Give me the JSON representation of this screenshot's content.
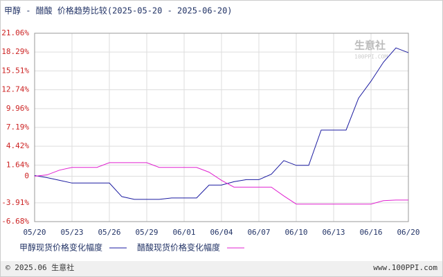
{
  "chart_data": {
    "type": "line",
    "title": "甲醇 - 醋酸 价格趋势比较(2025-05-20 - 2025-06-20)",
    "categories": [
      "05/20",
      null,
      null,
      "05/23",
      null,
      null,
      "05/26",
      null,
      null,
      "05/29",
      null,
      null,
      "06/01",
      null,
      null,
      "06/04",
      null,
      null,
      "06/07",
      null,
      null,
      "06/10",
      null,
      null,
      "06/13",
      null,
      null,
      "06/16",
      null,
      null,
      "06/20"
    ],
    "series": [
      {
        "name": "甲醇现货价格变化幅度",
        "color": "#1a1aa0",
        "values": [
          0.1,
          -0.2,
          -0.6,
          -1.0,
          -1.0,
          -1.0,
          -1.0,
          -3.0,
          -3.4,
          -3.4,
          -3.4,
          -3.2,
          -3.2,
          -3.2,
          -1.3,
          -1.3,
          -0.8,
          -0.5,
          -0.5,
          0.3,
          2.3,
          1.6,
          1.6,
          6.8,
          6.8,
          6.8,
          11.5,
          14.0,
          16.8,
          18.9,
          18.2
        ]
      },
      {
        "name": "醋酸现货价格变化幅度",
        "color": "#e020d0",
        "values": [
          0,
          0.2,
          0.9,
          1.3,
          1.3,
          1.3,
          2.0,
          2.0,
          2.0,
          2.0,
          1.3,
          1.3,
          1.3,
          1.3,
          0.6,
          -0.6,
          -1.6,
          -1.6,
          -1.6,
          -1.6,
          -2.9,
          -4.1,
          -4.1,
          -4.1,
          -4.1,
          -4.1,
          -4.1,
          -4.1,
          -3.6,
          -3.5,
          -3.5
        ]
      }
    ],
    "ylim": [
      -6.68,
      21.06
    ],
    "yticks": [
      {
        "value": -6.68,
        "label": "-6.68%"
      },
      {
        "value": -3.91,
        "label": "-3.91%"
      },
      0,
      {
        "value": 1.64,
        "label": "1.64%"
      },
      {
        "value": 4.42,
        "label": "4.42%"
      },
      {
        "value": 7.19,
        "label": "7.19%"
      },
      {
        "value": 9.96,
        "label": "9.96%"
      },
      {
        "value": 12.74,
        "label": "12.74%"
      },
      {
        "value": 15.51,
        "label": "15.51%"
      },
      {
        "value": 18.29,
        "label": "18.29%"
      },
      {
        "value": 21.06,
        "label": "21.06%"
      }
    ],
    "grid": true,
    "watermark": "生意社",
    "watermark_sub": "100PPI.COM",
    "footer_left": "© 2025.06 生意社",
    "footer_right": "www.100PPI.com"
  }
}
